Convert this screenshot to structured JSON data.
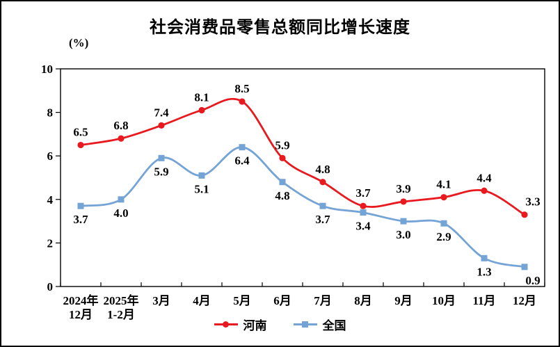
{
  "chart_data": {
    "type": "line",
    "title": "社会消费品零售总额同比增长速度",
    "unit_label": "(%)",
    "categories": [
      "2024年\n12月",
      "2025年\n1-2月",
      "3月",
      "4月",
      "5月",
      "6月",
      "7月",
      "8月",
      "9月",
      "10月",
      "11月",
      "12月"
    ],
    "series": [
      {
        "name": "河南",
        "color": "#e8191f",
        "marker": "circle",
        "label_position": "above",
        "values": [
          6.5,
          6.8,
          7.4,
          8.1,
          8.5,
          5.9,
          4.8,
          3.7,
          3.9,
          4.1,
          4.4,
          3.3
        ]
      },
      {
        "name": "全国",
        "color": "#74a3d6",
        "marker": "square",
        "label_position": "below",
        "values": [
          3.7,
          4.0,
          5.9,
          5.1,
          6.4,
          4.8,
          3.7,
          3.4,
          3.0,
          2.9,
          1.3,
          0.9
        ]
      }
    ],
    "ylim": [
      0,
      10
    ],
    "yticks": [
      0,
      2,
      4,
      6,
      8,
      10
    ],
    "grid": false,
    "smooth": true,
    "legend_position": "bottom",
    "axis_color": "#000000",
    "text_color": "#000000"
  }
}
